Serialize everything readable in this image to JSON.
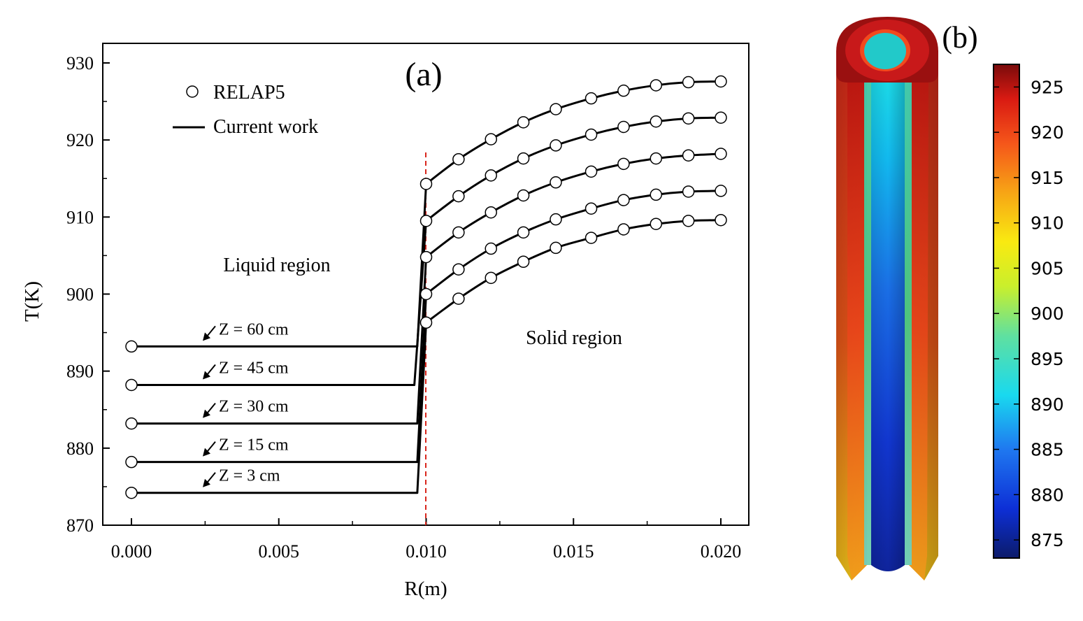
{
  "chart_data": [
    {
      "type": "line",
      "panel_label": "(a)",
      "xlabel": "R(m)",
      "ylabel": "T(K)",
      "xlim": [
        -0.001,
        0.021
      ],
      "ylim": [
        870,
        932
      ],
      "xticks": [
        "0.000",
        "0.005",
        "0.010",
        "0.015",
        "0.020"
      ],
      "yticks": [
        "870",
        "880",
        "890",
        "900",
        "910",
        "920",
        "930"
      ],
      "legend": {
        "placement": "top-left",
        "entries": [
          {
            "label": "RELAP5",
            "marker": "open-circle"
          },
          {
            "label": "Current work",
            "marker": "line"
          }
        ]
      },
      "annotations": {
        "liquid": "Liquid region",
        "solid": "Solid region"
      },
      "interface_line": {
        "x": 0.01,
        "color": "#d9261c",
        "style": "dashed"
      },
      "relap5_x": [
        0.0,
        0.01,
        0.0111,
        0.0122,
        0.0133,
        0.0144,
        0.0156,
        0.0167,
        0.0178,
        0.0189,
        0.02
      ],
      "series": [
        {
          "name": "Z = 60 cm",
          "liquid_T": 893.2,
          "wall_x": 0.0097,
          "relap5_y": [
            893.2,
            914.3,
            917.5,
            920.1,
            922.3,
            924.0,
            925.4,
            926.4,
            927.1,
            927.5,
            927.6
          ]
        },
        {
          "name": "Z = 45 cm",
          "liquid_T": 888.2,
          "wall_x": 0.0096,
          "relap5_y": [
            888.2,
            909.5,
            912.7,
            915.4,
            917.6,
            919.3,
            920.7,
            921.7,
            922.4,
            922.8,
            922.9
          ]
        },
        {
          "name": "Z = 30 cm",
          "liquid_T": 883.2,
          "wall_x": 0.0097,
          "relap5_y": [
            883.2,
            904.8,
            908.0,
            910.6,
            912.8,
            914.5,
            915.9,
            916.9,
            917.6,
            918.0,
            918.2
          ]
        },
        {
          "name": "Z = 15 cm",
          "liquid_T": 878.2,
          "wall_x": 0.0097,
          "relap5_y": [
            878.2,
            900.0,
            903.2,
            905.9,
            908.0,
            909.7,
            911.1,
            912.2,
            912.9,
            913.3,
            913.4
          ]
        },
        {
          "name": "Z = 3 cm",
          "liquid_T": 874.2,
          "wall_x": 0.0097,
          "relap5_y": [
            874.2,
            896.3,
            899.4,
            902.1,
            904.2,
            906.0,
            907.3,
            908.4,
            909.1,
            909.5,
            909.6
          ]
        }
      ]
    },
    {
      "type": "heatmap",
      "panel_label": "(b)",
      "colorbar": {
        "range": [
          873,
          927.5
        ],
        "ticks": [
          "875",
          "880",
          "885",
          "890",
          "895",
          "900",
          "905",
          "910",
          "915",
          "920",
          "925"
        ],
        "colormap": [
          "#0c1b6a",
          "#0d2fd6",
          "#1f78f0",
          "#19d9ef",
          "#5fe0a0",
          "#c9ef2c",
          "#f9ea11",
          "#f7a515",
          "#f5561a",
          "#d91a12",
          "#7a0b0b"
        ]
      },
      "rod": {
        "outer_T_top": 925,
        "outer_T_bottom": 907,
        "core_T_top": 893,
        "core_T_bottom": 876
      }
    }
  ]
}
